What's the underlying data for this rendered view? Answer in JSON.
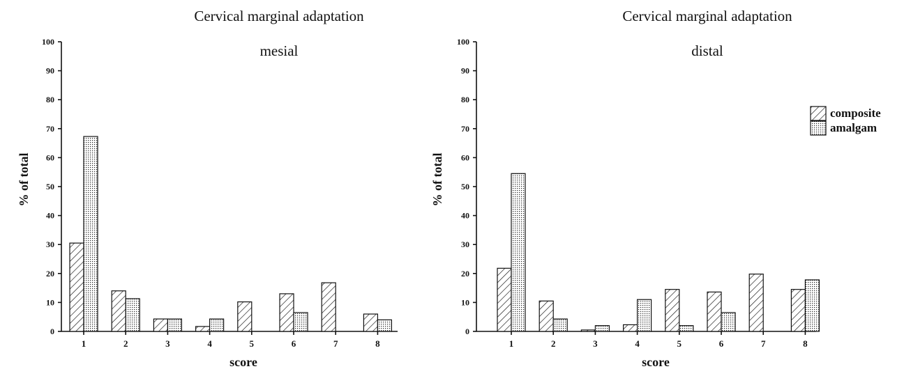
{
  "chart_data": [
    {
      "type": "bar",
      "title": "Cervical marginal adaptation",
      "subtitle": "mesial",
      "xlabel": "score",
      "ylabel": "% of total",
      "ylim": [
        0,
        100
      ],
      "yticks": [
        "0",
        "10",
        "20",
        "30",
        "40",
        "50",
        "60",
        "70",
        "80",
        "90",
        "100"
      ],
      "categories": [
        "1",
        "2",
        "3",
        "4",
        "5",
        "6",
        "7",
        "8"
      ],
      "series": [
        {
          "name": "composite",
          "values": [
            30.5,
            14,
            4.3,
            1.7,
            10.2,
            13,
            16.8,
            6
          ]
        },
        {
          "name": "amalgam",
          "values": [
            67.3,
            11.3,
            4.3,
            4.3,
            0,
            6.5,
            0,
            4
          ]
        }
      ],
      "legend": "none",
      "grid": false
    },
    {
      "type": "bar",
      "title": "Cervical marginal adaptation",
      "subtitle": "distal",
      "xlabel": "score",
      "ylabel": "% of total",
      "ylim": [
        0,
        100
      ],
      "yticks": [
        "0",
        "10",
        "20",
        "30",
        "40",
        "50",
        "60",
        "70",
        "80",
        "90",
        "100"
      ],
      "categories": [
        "1",
        "2",
        "3",
        "4",
        "5",
        "6",
        "7",
        "8"
      ],
      "series": [
        {
          "name": "composite",
          "values": [
            21.8,
            10.5,
            0.5,
            2.3,
            14.5,
            13.6,
            19.8,
            14.5
          ]
        },
        {
          "name": "amalgam",
          "values": [
            54.5,
            4.3,
            2,
            11,
            2,
            6.5,
            0,
            17.8
          ]
        }
      ],
      "legend": "right",
      "grid": false
    }
  ],
  "legend": {
    "items": [
      {
        "label": "composite",
        "pattern": "hatch"
      },
      {
        "label": "amalgam",
        "pattern": "dots"
      }
    ]
  }
}
